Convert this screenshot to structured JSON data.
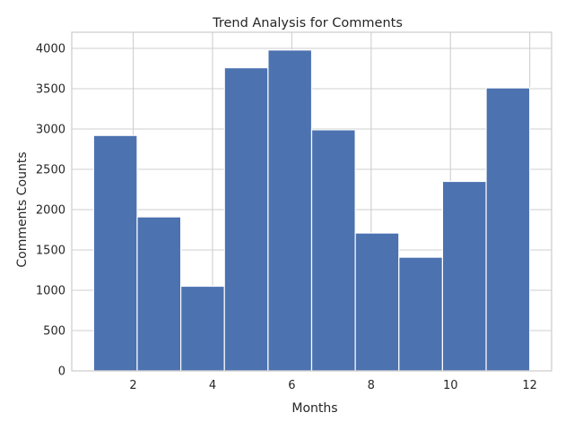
{
  "chart_data": {
    "type": "bar",
    "title": "Trend Analysis for Comments",
    "xlabel": "Months",
    "ylabel": "Comments Counts",
    "x_bin_edges": [
      1.0,
      2.1,
      3.2,
      4.3,
      5.4,
      6.5,
      7.6,
      8.7,
      9.8,
      10.9,
      12.0
    ],
    "values": [
      2920,
      1910,
      1050,
      3760,
      3980,
      2990,
      1710,
      1410,
      2350,
      3510
    ],
    "xlim": [
      0.45,
      12.55
    ],
    "ylim": [
      0,
      4200
    ],
    "xticks": [
      2,
      4,
      6,
      8,
      10,
      12
    ],
    "yticks": [
      0,
      500,
      1000,
      1500,
      2000,
      2500,
      3000,
      3500,
      4000
    ],
    "grid": true,
    "bar_color": "#4c72b0"
  }
}
